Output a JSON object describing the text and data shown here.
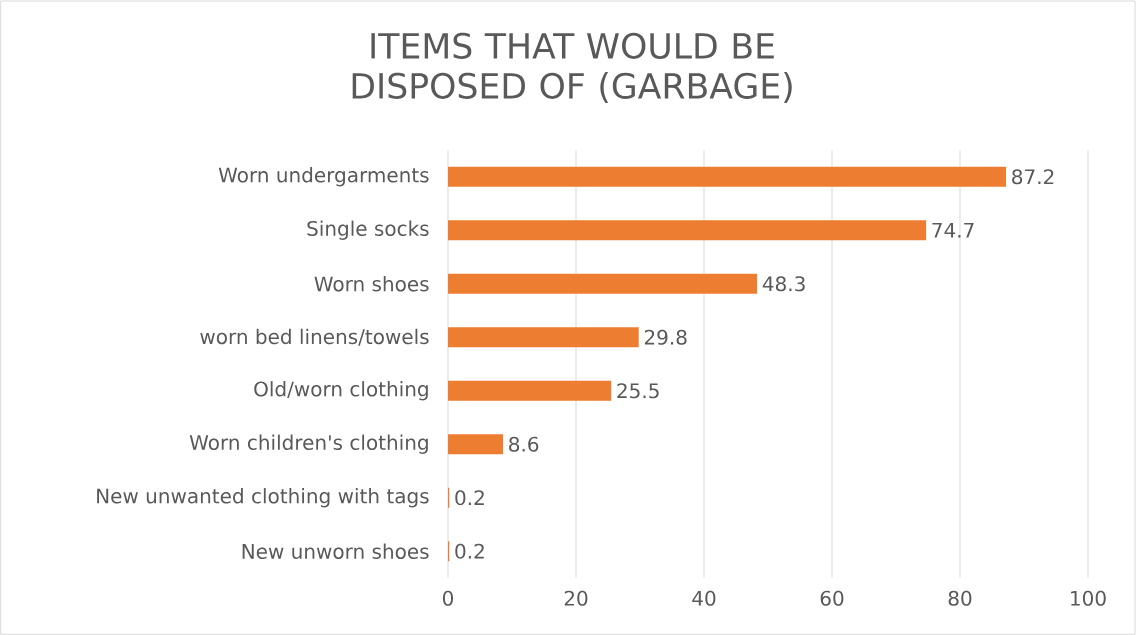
{
  "chart_data": {
    "type": "bar",
    "orientation": "horizontal",
    "title": "ITEMS THAT WOULD BE DISPOSED OF (GARBAGE)",
    "categories": [
      "Worn undergarments",
      "Single socks",
      "Worn shoes",
      "worn bed linens/towels",
      "Old/worn clothing",
      "Worn children's clothing",
      "New unwanted clothing with tags",
      "New unworn shoes"
    ],
    "values": [
      87.2,
      74.7,
      48.3,
      29.8,
      25.5,
      8.6,
      0.2,
      0.2
    ],
    "color": "#ed7d31",
    "xlim": [
      0,
      100
    ],
    "xticks": [
      0,
      20,
      40,
      60,
      80,
      100
    ],
    "grid": "x",
    "data_labels": true
  }
}
